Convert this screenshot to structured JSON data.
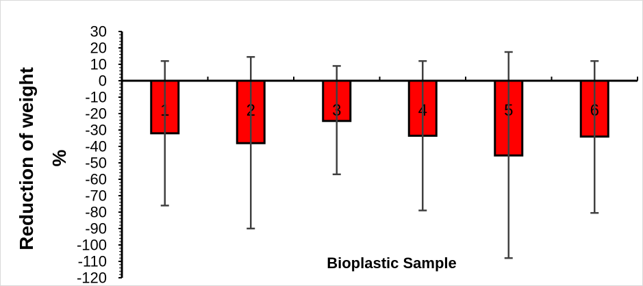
{
  "chart_data": {
    "type": "bar",
    "title": "",
    "xlabel": "Bioplastic Sample",
    "ylabel_line1": "Reduction of weight",
    "ylabel_line2": "%",
    "categories": [
      "1",
      "2",
      "3",
      "4",
      "5",
      "6"
    ],
    "series": [
      {
        "values": [
          -32,
          -38,
          -24.5,
          -33.5,
          -45.5,
          -34
        ],
        "error_upper": [
          12,
          14.5,
          9,
          12,
          17.5,
          12
        ],
        "error_lower": [
          -76,
          -90,
          -57,
          -79,
          -108,
          -80.5
        ]
      }
    ],
    "ylim": [
      -120,
      30
    ],
    "yticks": [
      30,
      20,
      10,
      0,
      -10,
      -20,
      -30,
      -40,
      -50,
      -60,
      -70,
      -80,
      -90,
      -100,
      -110,
      -120
    ],
    "grid": false,
    "legend": "none",
    "bar_color": "#ff0000",
    "bar_edge_color": "#000000",
    "error_bar_color": "#404040"
  }
}
